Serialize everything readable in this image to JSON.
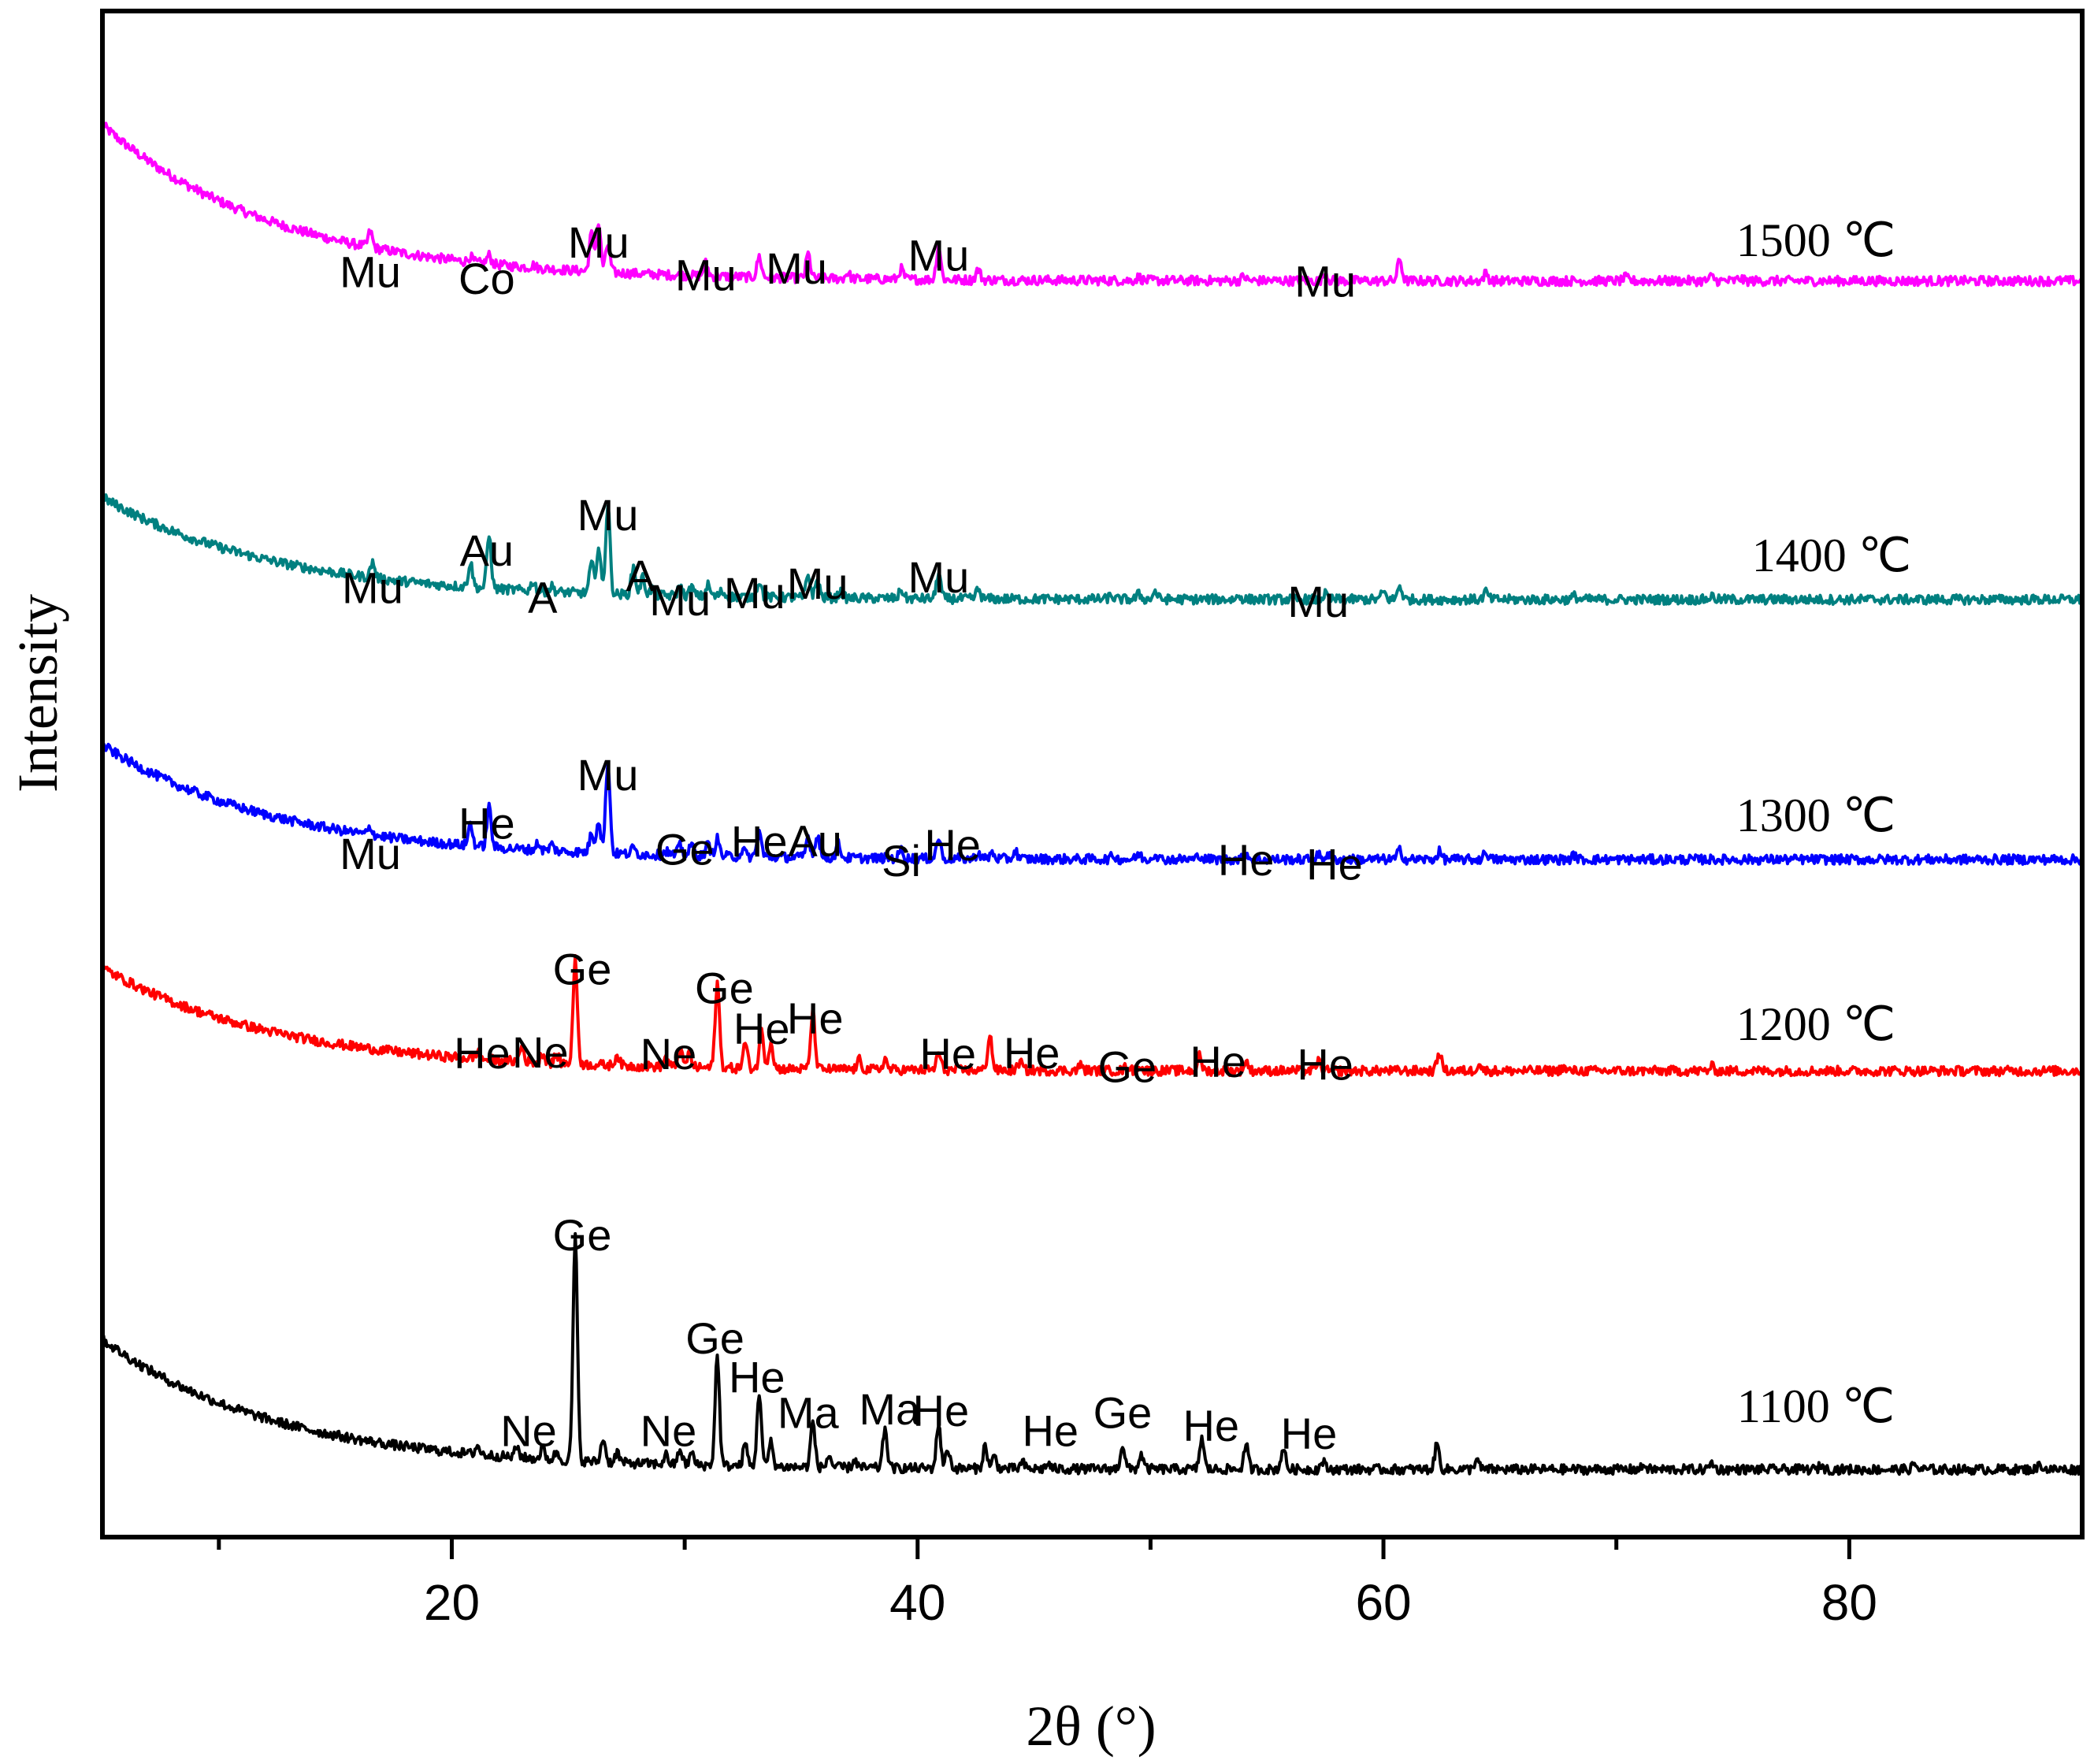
{
  "chart_data": {
    "type": "line",
    "title": "",
    "xlabel": "2θ (°)",
    "ylabel": "Intensity",
    "xlim": [
      5,
      90
    ],
    "xticks": [
      20,
      40,
      60,
      80
    ],
    "xticks_minor": [
      10,
      30,
      50,
      70
    ],
    "yticks": [],
    "grid": false,
    "legend": "none",
    "series": [
      {
        "name": "1500 ℃",
        "label": "1500  ℃",
        "color": "#ff00ff",
        "start": 11.2,
        "end": 2.2,
        "peaks": [
          [
            16.5,
            0.9
          ],
          [
            20.8,
            0.3
          ],
          [
            21.6,
            0.5
          ],
          [
            23.5,
            0.15
          ],
          [
            26.0,
            2.2
          ],
          [
            26.3,
            2.8
          ],
          [
            26.7,
            1.6
          ],
          [
            30.9,
            0.75
          ],
          [
            33.2,
            1.2
          ],
          [
            35.3,
            1.4
          ],
          [
            37.0,
            0.35
          ],
          [
            39.3,
            0.6
          ],
          [
            40.9,
            2.0
          ],
          [
            42.6,
            0.6
          ],
          [
            49.5,
            0.2
          ],
          [
            54.0,
            0.25
          ],
          [
            57.5,
            0.45
          ],
          [
            60.7,
            1.25
          ],
          [
            64.4,
            0.45
          ],
          [
            70.4,
            0.2
          ],
          [
            74.1,
            0.25
          ],
          [
            75.3,
            0.15
          ]
        ],
        "annotations": [
          {
            "text": "Mu",
            "x": 16.5,
            "h": 1.85
          },
          {
            "text": "Co",
            "x": 21.5,
            "h": 1.45
          },
          {
            "text": "Mu",
            "x": 26.3,
            "h": 3.55
          },
          {
            "text": "Mu",
            "x": 30.9,
            "h": 1.65
          },
          {
            "text": "Mu",
            "x": 34.8,
            "h": 2.05
          },
          {
            "text": "Mu",
            "x": 40.9,
            "h": 2.8
          },
          {
            "text": "Mu",
            "x": 57.5,
            "h": 1.3
          }
        ]
      },
      {
        "name": "1400 ℃",
        "label": "1400  ℃",
        "color": "#008080",
        "start": 7.9,
        "end": 2.0,
        "peaks": [
          [
            16.6,
            0.9
          ],
          [
            20.8,
            1.4
          ],
          [
            21.6,
            3.05
          ],
          [
            23.5,
            0.55
          ],
          [
            24.3,
            0.3
          ],
          [
            26.0,
            1.7
          ],
          [
            26.3,
            2.6
          ],
          [
            26.7,
            5.2
          ],
          [
            27.8,
            1.6
          ],
          [
            28.2,
            1.0
          ],
          [
            28.6,
            0.35
          ],
          [
            29.8,
            0.55
          ],
          [
            30.3,
            0.5
          ],
          [
            31.0,
            0.65
          ],
          [
            31.6,
            0.3
          ],
          [
            33.2,
            0.95
          ],
          [
            35.3,
            1.3
          ],
          [
            35.7,
            1.05
          ],
          [
            36.7,
            0.35
          ],
          [
            39.3,
            0.5
          ],
          [
            40.9,
            1.5
          ],
          [
            42.6,
            0.55
          ],
          [
            48.3,
            0.2
          ],
          [
            49.5,
            0.3
          ],
          [
            50.2,
            0.45
          ],
          [
            53.8,
            0.2
          ],
          [
            57.5,
            0.3
          ],
          [
            60.0,
            0.45
          ],
          [
            60.7,
            0.8
          ],
          [
            64.4,
            0.45
          ],
          [
            68.2,
            0.2
          ],
          [
            74.1,
            0.2
          ]
        ],
        "annotations": [
          {
            "text": "Mu",
            "x": 16.6,
            "h": 1.8
          },
          {
            "text": "Au",
            "x": 21.5,
            "h": 3.95
          },
          {
            "text": "A",
            "x": 23.9,
            "h": 1.25
          },
          {
            "text": "Mu",
            "x": 26.7,
            "h": 6.0
          },
          {
            "text": "A",
            "x": 28.1,
            "h": 2.5
          },
          {
            "text": "Mu",
            "x": 29.8,
            "h": 1.1
          },
          {
            "text": "Mu",
            "x": 33.0,
            "h": 1.5
          },
          {
            "text": "Mu",
            "x": 35.7,
            "h": 2.05
          },
          {
            "text": "Mu",
            "x": 40.9,
            "h": 2.4
          },
          {
            "text": "Mu",
            "x": 57.2,
            "h": 1.0
          }
        ]
      },
      {
        "name": "1300 ℃",
        "label": "1300  ℃",
        "color": "#0000ff",
        "start": 8.6,
        "end": 2.0,
        "peaks": [
          [
            16.5,
            0.45
          ],
          [
            20.8,
            1.25
          ],
          [
            21.6,
            2.3
          ],
          [
            23.7,
            0.4
          ],
          [
            24.3,
            0.35
          ],
          [
            26.0,
            1.1
          ],
          [
            26.3,
            1.9
          ],
          [
            26.7,
            5.3
          ],
          [
            27.8,
            0.35
          ],
          [
            29.2,
            0.25
          ],
          [
            29.8,
            0.55
          ],
          [
            30.3,
            0.6
          ],
          [
            31.0,
            0.65
          ],
          [
            31.4,
            1.0
          ],
          [
            32.5,
            0.4
          ],
          [
            33.2,
            1.45
          ],
          [
            35.3,
            1.2
          ],
          [
            35.7,
            1.35
          ],
          [
            36.6,
            0.8
          ],
          [
            39.3,
            0.5
          ],
          [
            40.9,
            1.2
          ],
          [
            42.6,
            0.35
          ],
          [
            43.2,
            0.35
          ],
          [
            44.2,
            0.45
          ],
          [
            48.4,
            0.2
          ],
          [
            49.5,
            0.3
          ],
          [
            50.2,
            0.35
          ],
          [
            52.1,
            0.25
          ],
          [
            54.1,
            0.35
          ],
          [
            57.2,
            0.25
          ],
          [
            57.6,
            0.3
          ],
          [
            60.7,
            0.55
          ],
          [
            62.4,
            0.45
          ],
          [
            64.4,
            0.45
          ],
          [
            68.2,
            0.25
          ]
        ],
        "annotations": [
          {
            "text": "Mu",
            "x": 16.5,
            "h": 1.45
          },
          {
            "text": "He",
            "x": 21.5,
            "h": 3.2
          },
          {
            "text": "Mu",
            "x": 26.7,
            "h": 6.0
          },
          {
            "text": "Ge",
            "x": 30.0,
            "h": 1.7
          },
          {
            "text": "He",
            "x": 33.2,
            "h": 2.15
          },
          {
            "text": "Au",
            "x": 35.6,
            "h": 2.2
          },
          {
            "text": "Si",
            "x": 39.3,
            "h": 1.05
          },
          {
            "text": "He",
            "x": 41.5,
            "h": 1.95
          },
          {
            "text": "He",
            "x": 54.1,
            "h": 1.1
          },
          {
            "text": "He",
            "x": 57.9,
            "h": 0.85
          }
        ]
      },
      {
        "name": "1200 ℃",
        "label": "1200  ℃",
        "color": "#ff0000",
        "start": 7.8,
        "end": 1.85,
        "peaks": [
          [
            21.1,
            0.4
          ],
          [
            23.0,
            0.85
          ],
          [
            23.9,
            0.55
          ],
          [
            24.5,
            0.5
          ],
          [
            25.3,
            6.0
          ],
          [
            27.1,
            0.6
          ],
          [
            29.2,
            0.55
          ],
          [
            29.8,
            1.0
          ],
          [
            30.2,
            0.85
          ],
          [
            31.4,
            4.9
          ],
          [
            32.6,
            1.45
          ],
          [
            33.3,
            2.25
          ],
          [
            33.7,
            1.55
          ],
          [
            35.5,
            3.3
          ],
          [
            37.5,
            0.55
          ],
          [
            38.6,
            0.6
          ],
          [
            40.9,
            1.0
          ],
          [
            43.1,
            2.05
          ],
          [
            44.4,
            0.5
          ],
          [
            47.0,
            0.3
          ],
          [
            49.0,
            0.3
          ],
          [
            49.5,
            0.3
          ],
          [
            52.1,
            0.85
          ],
          [
            54.1,
            0.55
          ],
          [
            57.2,
            0.55
          ],
          [
            62.4,
            1.1
          ],
          [
            64.1,
            0.45
          ],
          [
            67.7,
            0.2
          ],
          [
            74.1,
            0.25
          ]
        ],
        "annotations": [
          {
            "text": "He",
            "x": 21.3,
            "h": 2.0
          },
          {
            "text": "Ne",
            "x": 23.8,
            "h": 2.05
          },
          {
            "text": "Ge",
            "x": 25.6,
            "h": 6.85
          },
          {
            "text": "Ne",
            "x": 29.3,
            "h": 1.95
          },
          {
            "text": "Ge",
            "x": 31.7,
            "h": 5.75
          },
          {
            "text": "He",
            "x": 33.3,
            "h": 3.4
          },
          {
            "text": "He",
            "x": 35.6,
            "h": 4.0
          },
          {
            "text": "He",
            "x": 41.3,
            "h": 1.95
          },
          {
            "text": "He",
            "x": 44.9,
            "h": 2.0
          },
          {
            "text": "Ge",
            "x": 49.0,
            "h": 1.2
          },
          {
            "text": "He",
            "x": 52.9,
            "h": 1.5
          },
          {
            "text": "He",
            "x": 57.5,
            "h": 1.35
          }
        ]
      },
      {
        "name": "1100 ℃",
        "label": "1100  ℃",
        "color": "#000000",
        "start": 8.4,
        "end": 0.9,
        "peaks": [
          [
            21.1,
            0.5
          ],
          [
            22.8,
            0.6
          ],
          [
            23.9,
            0.65
          ],
          [
            24.5,
            0.45
          ],
          [
            25.3,
            13.0
          ],
          [
            26.5,
            1.4
          ],
          [
            27.1,
            0.6
          ],
          [
            29.2,
            0.55
          ],
          [
            29.8,
            0.9
          ],
          [
            30.3,
            0.7
          ],
          [
            31.4,
            6.4
          ],
          [
            32.6,
            1.3
          ],
          [
            33.2,
            4.3
          ],
          [
            33.7,
            1.4
          ],
          [
            35.5,
            2.65
          ],
          [
            36.2,
            0.7
          ],
          [
            37.3,
            0.45
          ],
          [
            38.6,
            2.3
          ],
          [
            40.9,
            2.6
          ],
          [
            41.3,
            1.1
          ],
          [
            42.9,
            1.3
          ],
          [
            43.3,
            0.7
          ],
          [
            44.5,
            0.35
          ],
          [
            45.6,
            0.3
          ],
          [
            48.8,
            1.4
          ],
          [
            49.6,
            0.85
          ],
          [
            52.2,
            1.8
          ],
          [
            54.1,
            1.4
          ],
          [
            55.7,
            1.25
          ],
          [
            57.4,
            0.45
          ],
          [
            62.3,
            1.5
          ],
          [
            64.0,
            0.6
          ],
          [
            71.2,
            0.25
          ],
          [
            74.1,
            0.4
          ],
          [
            78.8,
            0.25
          ],
          [
            82.8,
            0.3
          ],
          [
            88.2,
            0.3
          ]
        ],
        "annotations": [
          {
            "text": "Ne",
            "x": 23.3,
            "h": 2.25
          },
          {
            "text": "Ge",
            "x": 25.6,
            "h": 13.55
          },
          {
            "text": "Ne",
            "x": 29.3,
            "h": 2.25
          },
          {
            "text": "Ge",
            "x": 31.3,
            "h": 7.6
          },
          {
            "text": "He",
            "x": 33.1,
            "h": 5.35
          },
          {
            "text": "Ma",
            "x": 35.3,
            "h": 3.3
          },
          {
            "text": "Ma",
            "x": 38.8,
            "h": 3.5
          },
          {
            "text": "He",
            "x": 41.0,
            "h": 3.4
          },
          {
            "text": "He",
            "x": 45.7,
            "h": 2.25
          },
          {
            "text": "Ge",
            "x": 48.8,
            "h": 3.3
          },
          {
            "text": "He",
            "x": 52.6,
            "h": 2.55
          },
          {
            "text": "He",
            "x": 56.8,
            "h": 2.1
          }
        ]
      }
    ]
  }
}
